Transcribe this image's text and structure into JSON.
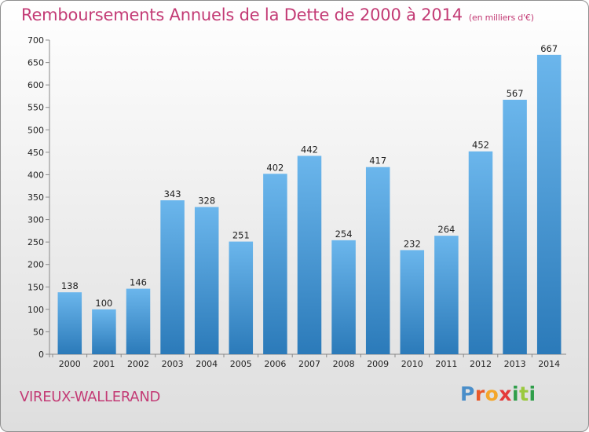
{
  "title": "Remboursements Annuels de la Dette de 2000 à 2014",
  "unit": "(en milliers d'€)",
  "commune": "VIREUX-WALLERAND",
  "logo_text": "Proxiti",
  "colors": {
    "title": "#c33b75",
    "bar_light": "#6bb6ec",
    "bar_dark": "#2b7ab9"
  },
  "chart_data": {
    "type": "bar",
    "title": "Remboursements Annuels de la Dette de 2000 à 2014",
    "categories": [
      "2000",
      "2001",
      "2002",
      "2003",
      "2004",
      "2005",
      "2006",
      "2007",
      "2008",
      "2009",
      "2010",
      "2011",
      "2012",
      "2013",
      "2014"
    ],
    "values": [
      138,
      100,
      146,
      343,
      328,
      251,
      402,
      442,
      254,
      417,
      232,
      264,
      452,
      567,
      667
    ],
    "ylim": [
      0,
      700
    ],
    "yticks": [
      0,
      50,
      100,
      150,
      200,
      250,
      300,
      350,
      400,
      450,
      500,
      550,
      600,
      650,
      700
    ],
    "grid": false,
    "legend": "none"
  }
}
